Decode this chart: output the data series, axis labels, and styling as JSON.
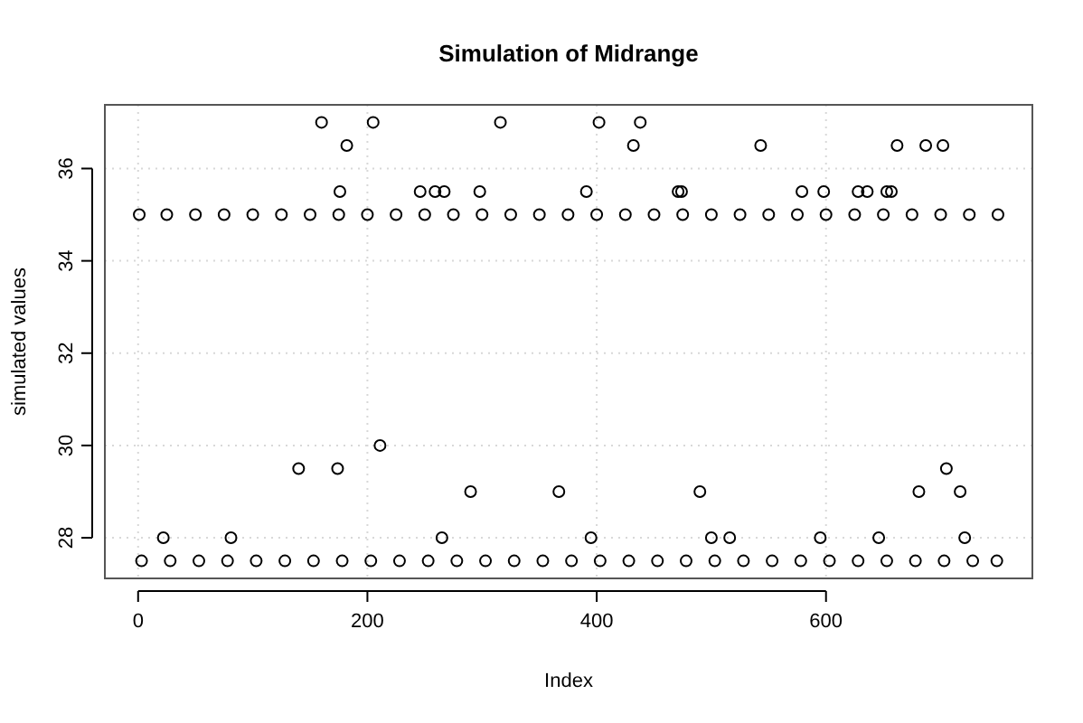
{
  "chart_data": {
    "type": "scatter",
    "title": "Simulation of Midrange",
    "xlabel": "Index",
    "ylabel": "simulated values",
    "xlim": [
      -29,
      780
    ],
    "ylim": [
      27.12,
      37.38
    ],
    "xticks": [
      0,
      200,
      400,
      600
    ],
    "yticks": [
      28,
      30,
      32,
      34,
      36
    ],
    "grid": true,
    "marker": "circle",
    "series": [
      {
        "color": "#000000",
        "x": [
          1,
          25,
          50,
          75,
          100,
          125,
          150,
          175,
          200,
          225,
          250,
          275,
          300,
          325,
          350,
          375,
          400,
          425,
          450,
          475,
          500,
          525,
          550,
          575,
          600,
          625,
          650,
          675,
          700,
          725,
          750,
          3,
          28,
          53,
          78,
          103,
          128,
          153,
          178,
          203,
          228,
          253,
          278,
          303,
          328,
          353,
          378,
          403,
          428,
          453,
          478,
          503,
          528,
          553,
          578,
          603,
          628,
          653,
          678,
          703,
          728,
          749,
          160,
          205,
          316,
          402,
          438,
          182,
          432,
          543,
          662,
          687,
          702,
          176,
          246,
          259,
          267,
          298,
          391,
          471,
          474,
          579,
          598,
          628,
          636,
          653,
          657,
          211,
          140,
          174,
          705,
          290,
          367,
          490,
          681,
          717,
          22,
          81,
          265,
          395,
          500,
          516,
          595,
          646,
          721
        ],
        "values": [
          35,
          35,
          35,
          35,
          35,
          35,
          35,
          35,
          35,
          35,
          35,
          35,
          35,
          35,
          35,
          35,
          35,
          35,
          35,
          35,
          35,
          35,
          35,
          35,
          35,
          35,
          35,
          35,
          35,
          35,
          35,
          27.5,
          27.5,
          27.5,
          27.5,
          27.5,
          27.5,
          27.5,
          27.5,
          27.5,
          27.5,
          27.5,
          27.5,
          27.5,
          27.5,
          27.5,
          27.5,
          27.5,
          27.5,
          27.5,
          27.5,
          27.5,
          27.5,
          27.5,
          27.5,
          27.5,
          27.5,
          27.5,
          27.5,
          27.5,
          27.5,
          27.5,
          37,
          37,
          37,
          37,
          37,
          36.5,
          36.5,
          36.5,
          36.5,
          36.5,
          36.5,
          35.5,
          35.5,
          35.5,
          35.5,
          35.5,
          35.5,
          35.5,
          35.5,
          35.5,
          35.5,
          35.5,
          35.5,
          35.5,
          35.5,
          30,
          29.5,
          29.5,
          29.5,
          29,
          29,
          29,
          29,
          29,
          28,
          28,
          28,
          28,
          28,
          28,
          28,
          28,
          28
        ]
      }
    ]
  }
}
